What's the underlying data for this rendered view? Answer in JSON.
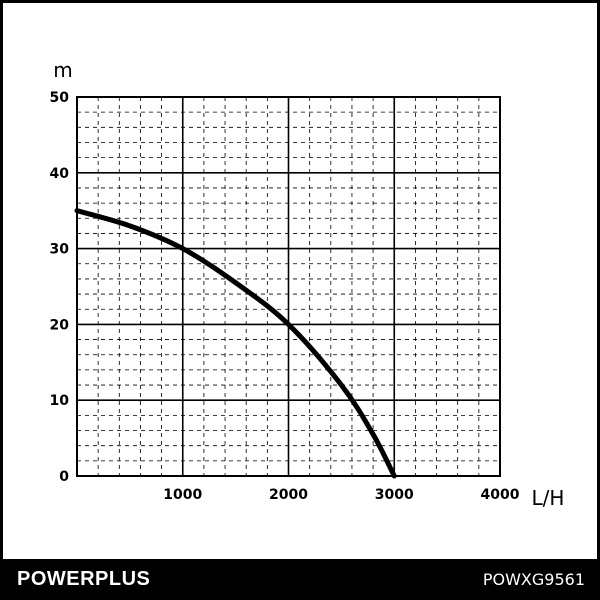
{
  "chart_data": {
    "type": "line",
    "title": "",
    "ylabel": "m",
    "xlabel": "L/H",
    "xlim": [
      0,
      4000
    ],
    "ylim": [
      0,
      50
    ],
    "xticks": [
      "1000",
      "2000",
      "3000",
      "4000"
    ],
    "yticks": [
      "0",
      "10",
      "20",
      "30",
      "40",
      "50"
    ],
    "grid": true,
    "series": [
      {
        "x": [
          0,
          500,
          1000,
          1500,
          2000,
          2500,
          2800,
          3000
        ],
        "y": [
          35,
          33,
          30,
          25.5,
          20,
          12,
          5.5,
          0
        ]
      }
    ]
  },
  "footer": {
    "brand": "POWERPLUS",
    "model": "POWXG9561"
  },
  "colors": {
    "line": "#000000",
    "grid": "#000000",
    "footer_bg": "#000000",
    "footer_text": "#ffffff"
  }
}
